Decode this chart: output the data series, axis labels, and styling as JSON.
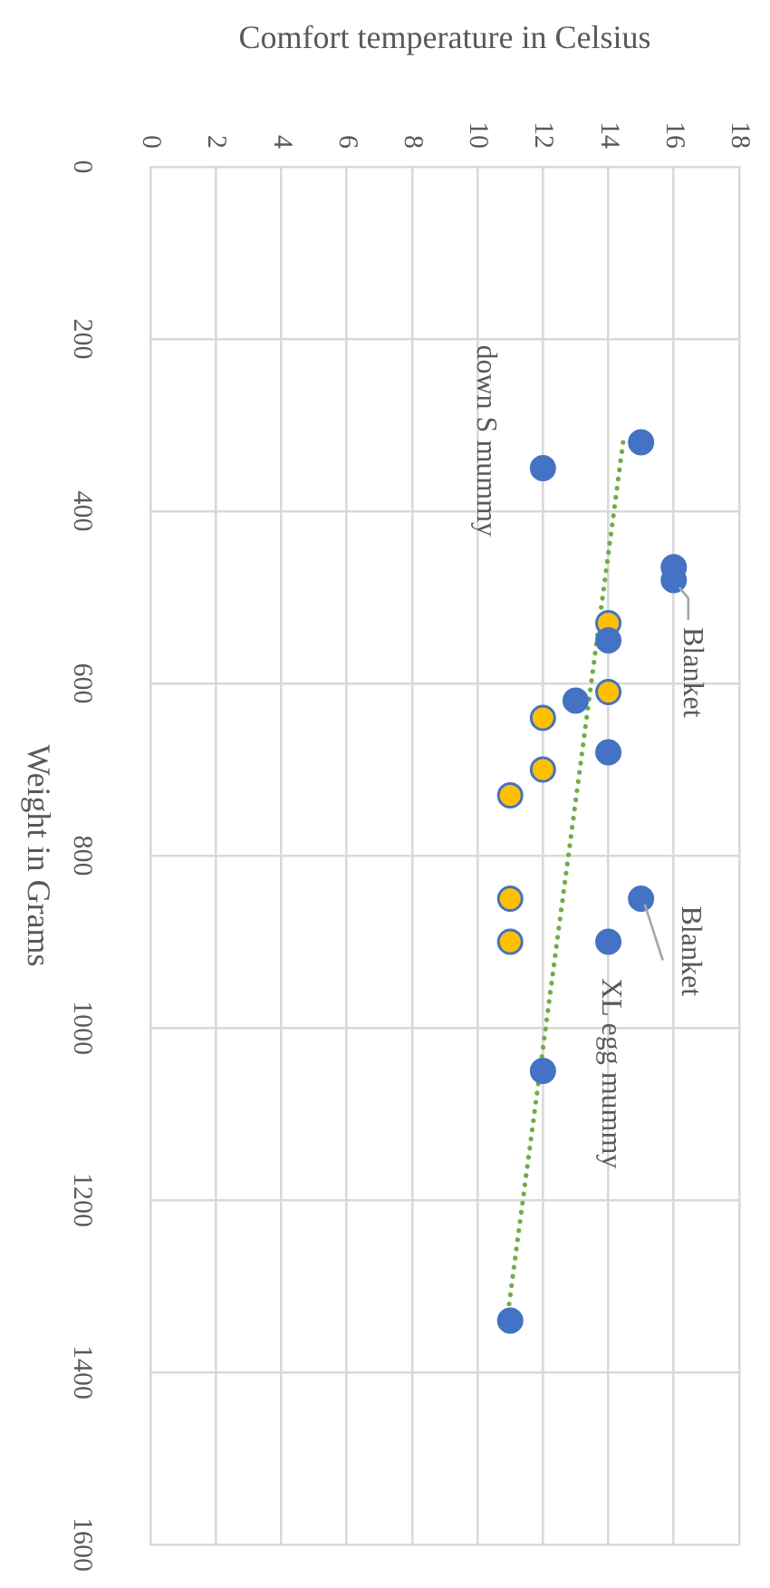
{
  "chart_data": {
    "type": "scatter",
    "xlabel": "Comfort temperature in Celsius",
    "ylabel": "Weight in Grams",
    "xlim": [
      0,
      18
    ],
    "xticks": [
      0,
      2,
      4,
      6,
      8,
      10,
      12,
      14,
      16,
      18
    ],
    "ylim": [
      1600,
      0
    ],
    "yticks": [
      0,
      200,
      400,
      600,
      800,
      1000,
      1200,
      1400,
      1600
    ],
    "grid": true,
    "legend": false,
    "series": [
      {
        "color": "#4472c4",
        "marker": "circle",
        "x": [
          15,
          12,
          16,
          16,
          14,
          13,
          14,
          15,
          14,
          12,
          11
        ],
        "values": [
          320,
          350,
          465,
          480,
          550,
          620,
          680,
          850,
          900,
          1050,
          1340
        ]
      },
      {
        "color": "#ffc000",
        "marker": "circle",
        "x": [
          14,
          14,
          12,
          12,
          11,
          11,
          11
        ],
        "values": [
          530,
          610,
          640,
          700,
          730,
          850,
          900
        ]
      },
      {
        "type": "line",
        "color": "#70ad47",
        "line_style": "dotted",
        "marker": "none",
        "x": [
          14.45,
          10.9
        ],
        "values": [
          320,
          1340
        ]
      }
    ],
    "annotations": [
      {
        "text": "down S mummy",
        "x": 12,
        "y": 350
      },
      {
        "text": "Blanket",
        "x": 16,
        "y": 480
      },
      {
        "text": "Blanket",
        "x": 15,
        "y": 850
      },
      {
        "text": "XL egg mummy",
        "x": 14,
        "y": 900
      }
    ]
  }
}
